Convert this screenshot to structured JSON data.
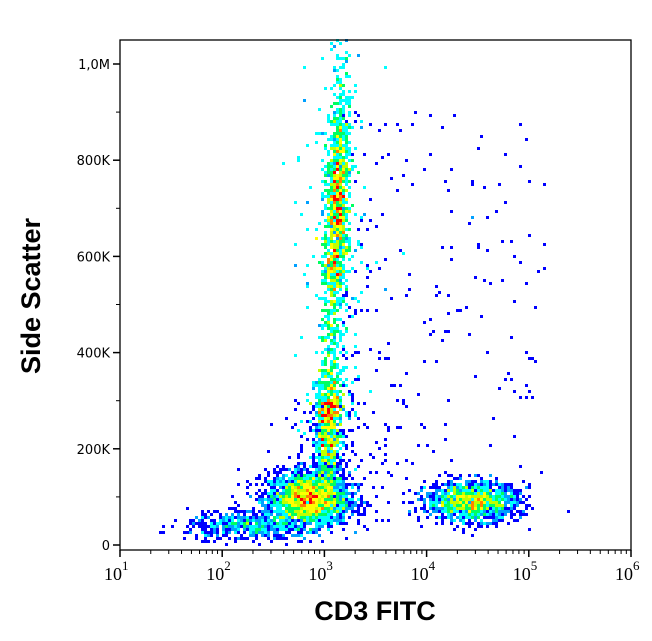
{
  "chart_data": {
    "type": "scatter",
    "subtype": "density dot plot (jet colormap)",
    "xlabel": "CD3 FITC",
    "ylabel": "Side Scatter",
    "x_scale": "log",
    "xlim": [
      10,
      1000000
    ],
    "ylim": [
      -10000,
      1050000
    ],
    "x_ticks": [
      {
        "base": "10",
        "exp": "1",
        "value": 10
      },
      {
        "base": "10",
        "exp": "2",
        "value": 100
      },
      {
        "base": "10",
        "exp": "3",
        "value": 1000
      },
      {
        "base": "10",
        "exp": "4",
        "value": 10000
      },
      {
        "base": "10",
        "exp": "5",
        "value": 100000
      },
      {
        "base": "10",
        "exp": "6",
        "value": 1000000
      }
    ],
    "y_ticks": [
      {
        "label": "0",
        "value": 0
      },
      {
        "label": "200K",
        "value": 200000
      },
      {
        "label": "400K",
        "value": 400000
      },
      {
        "label": "600K",
        "value": 600000
      },
      {
        "label": "800K",
        "value": 800000
      },
      {
        "label": "1,0M",
        "value": 1000000
      }
    ],
    "grid": false,
    "legend": "none",
    "colormap": [
      "#0000ff",
      "#00a0ff",
      "#00ffff",
      "#00ff60",
      "#c0ff00",
      "#ffff00",
      "#ff8000",
      "#ff0000"
    ],
    "populations": [
      {
        "name_hint": "CD3-negative low SSC",
        "center_x": 700,
        "center_y": 95000,
        "spread_log_x": 0.2,
        "spread_y": 28000,
        "count": 2600
      },
      {
        "name_hint": "low tail",
        "center_x": 180,
        "center_y": 40000,
        "spread_log_x": 0.3,
        "spread_y": 15000,
        "count": 500
      },
      {
        "name_hint": "high SSC streak",
        "center_x": 1350,
        "y_range": [
          150000,
          1050000
        ],
        "spread_log_x": 0.06,
        "count": 5200
      },
      {
        "name_hint": "CD3-positive",
        "center_x": 28000,
        "center_y": 90000,
        "spread_log_x": 0.22,
        "spread_y": 20000,
        "count": 1500
      },
      {
        "name_hint": "sparse events",
        "x_range": [
          1500,
          150000
        ],
        "y_range": [
          50000,
          900000
        ],
        "count": 260
      }
    ]
  }
}
